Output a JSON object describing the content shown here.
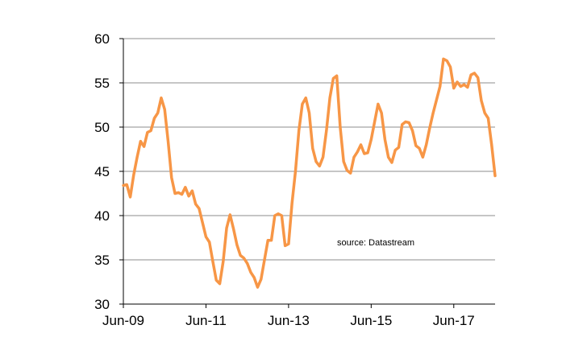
{
  "chart_data": {
    "type": "line",
    "title": "",
    "xlabel": "",
    "ylabel": "",
    "ylim": [
      30,
      60
    ],
    "xlim": [
      "2009-06",
      "2018-06"
    ],
    "y_ticks": [
      "30",
      "35",
      "40",
      "45",
      "50",
      "55",
      "60"
    ],
    "x_tick_labels": [
      "Jun-09",
      "Jun-11",
      "Jun-13",
      "Jun-15",
      "Jun-17"
    ],
    "x_tick_dates": [
      "2009-06",
      "2011-06",
      "2013-06",
      "2015-06",
      "2017-06"
    ],
    "grid": "horizontal",
    "annotation": "source:  Datastream",
    "series": [
      {
        "color": "#F79646",
        "x": [
          "2009-06",
          "2009-07",
          "2009-08",
          "2009-09",
          "2009-10",
          "2009-11",
          "2009-12",
          "2010-01",
          "2010-02",
          "2010-03",
          "2010-04",
          "2010-05",
          "2010-06",
          "2010-07",
          "2010-08",
          "2010-09",
          "2010-10",
          "2010-11",
          "2010-12",
          "2011-01",
          "2011-02",
          "2011-03",
          "2011-04",
          "2011-05",
          "2011-06",
          "2011-07",
          "2011-08",
          "2011-09",
          "2011-10",
          "2011-11",
          "2011-12",
          "2012-01",
          "2012-02",
          "2012-03",
          "2012-04",
          "2012-05",
          "2012-06",
          "2012-07",
          "2012-08",
          "2012-09",
          "2012-10",
          "2012-11",
          "2012-12",
          "2013-01",
          "2013-02",
          "2013-03",
          "2013-04",
          "2013-05",
          "2013-06",
          "2013-07",
          "2013-08",
          "2013-09",
          "2013-10",
          "2013-11",
          "2013-12",
          "2014-01",
          "2014-02",
          "2014-03",
          "2014-04",
          "2014-05",
          "2014-06",
          "2014-07",
          "2014-08",
          "2014-09",
          "2014-10",
          "2014-11",
          "2014-12",
          "2015-01",
          "2015-02",
          "2015-03",
          "2015-04",
          "2015-05",
          "2015-06",
          "2015-07",
          "2015-08",
          "2015-09",
          "2015-10",
          "2015-11",
          "2015-12",
          "2016-01",
          "2016-02",
          "2016-03",
          "2016-04",
          "2016-05",
          "2016-06",
          "2016-07",
          "2016-08",
          "2016-09",
          "2016-10",
          "2016-11",
          "2016-12",
          "2017-01",
          "2017-02",
          "2017-03",
          "2017-04",
          "2017-05",
          "2017-06",
          "2017-07",
          "2017-08",
          "2017-09",
          "2017-10",
          "2017-11",
          "2017-12",
          "2018-01",
          "2018-02",
          "2018-03",
          "2018-04",
          "2018-05",
          "2018-06"
        ],
        "y": [
          43.4,
          43.5,
          42.1,
          44.6,
          46.6,
          48.4,
          47.8,
          49.4,
          49.6,
          51.0,
          51.6,
          53.3,
          52.0,
          48.4,
          44.3,
          42.5,
          42.6,
          42.4,
          43.2,
          42.2,
          42.8,
          41.3,
          40.8,
          39.2,
          37.6,
          37.0,
          34.8,
          32.7,
          32.3,
          34.8,
          38.6,
          40.1,
          38.5,
          36.7,
          35.5,
          35.2,
          34.6,
          33.6,
          33.0,
          31.9,
          32.8,
          35.0,
          37.2,
          37.2,
          40.0,
          40.2,
          40.0,
          36.6,
          36.8,
          41.4,
          45.0,
          49.6,
          52.6,
          53.3,
          51.6,
          47.6,
          46.1,
          45.6,
          46.6,
          49.6,
          53.3,
          55.5,
          55.8,
          50.0,
          46.1,
          45.1,
          44.8,
          46.6,
          47.2,
          48.0,
          47.0,
          47.1,
          48.6,
          50.6,
          52.6,
          51.6,
          48.6,
          46.6,
          46.0,
          47.4,
          47.7,
          50.3,
          50.6,
          50.5,
          49.6,
          47.9,
          47.6,
          46.6,
          48.0,
          49.9,
          51.6,
          53.1,
          54.6,
          57.7,
          57.5,
          56.8,
          54.4,
          55.1,
          54.6,
          54.8,
          54.5,
          55.9,
          56.1,
          55.6,
          53.0,
          51.6,
          51.0,
          48.0,
          44.5
        ]
      }
    ]
  }
}
